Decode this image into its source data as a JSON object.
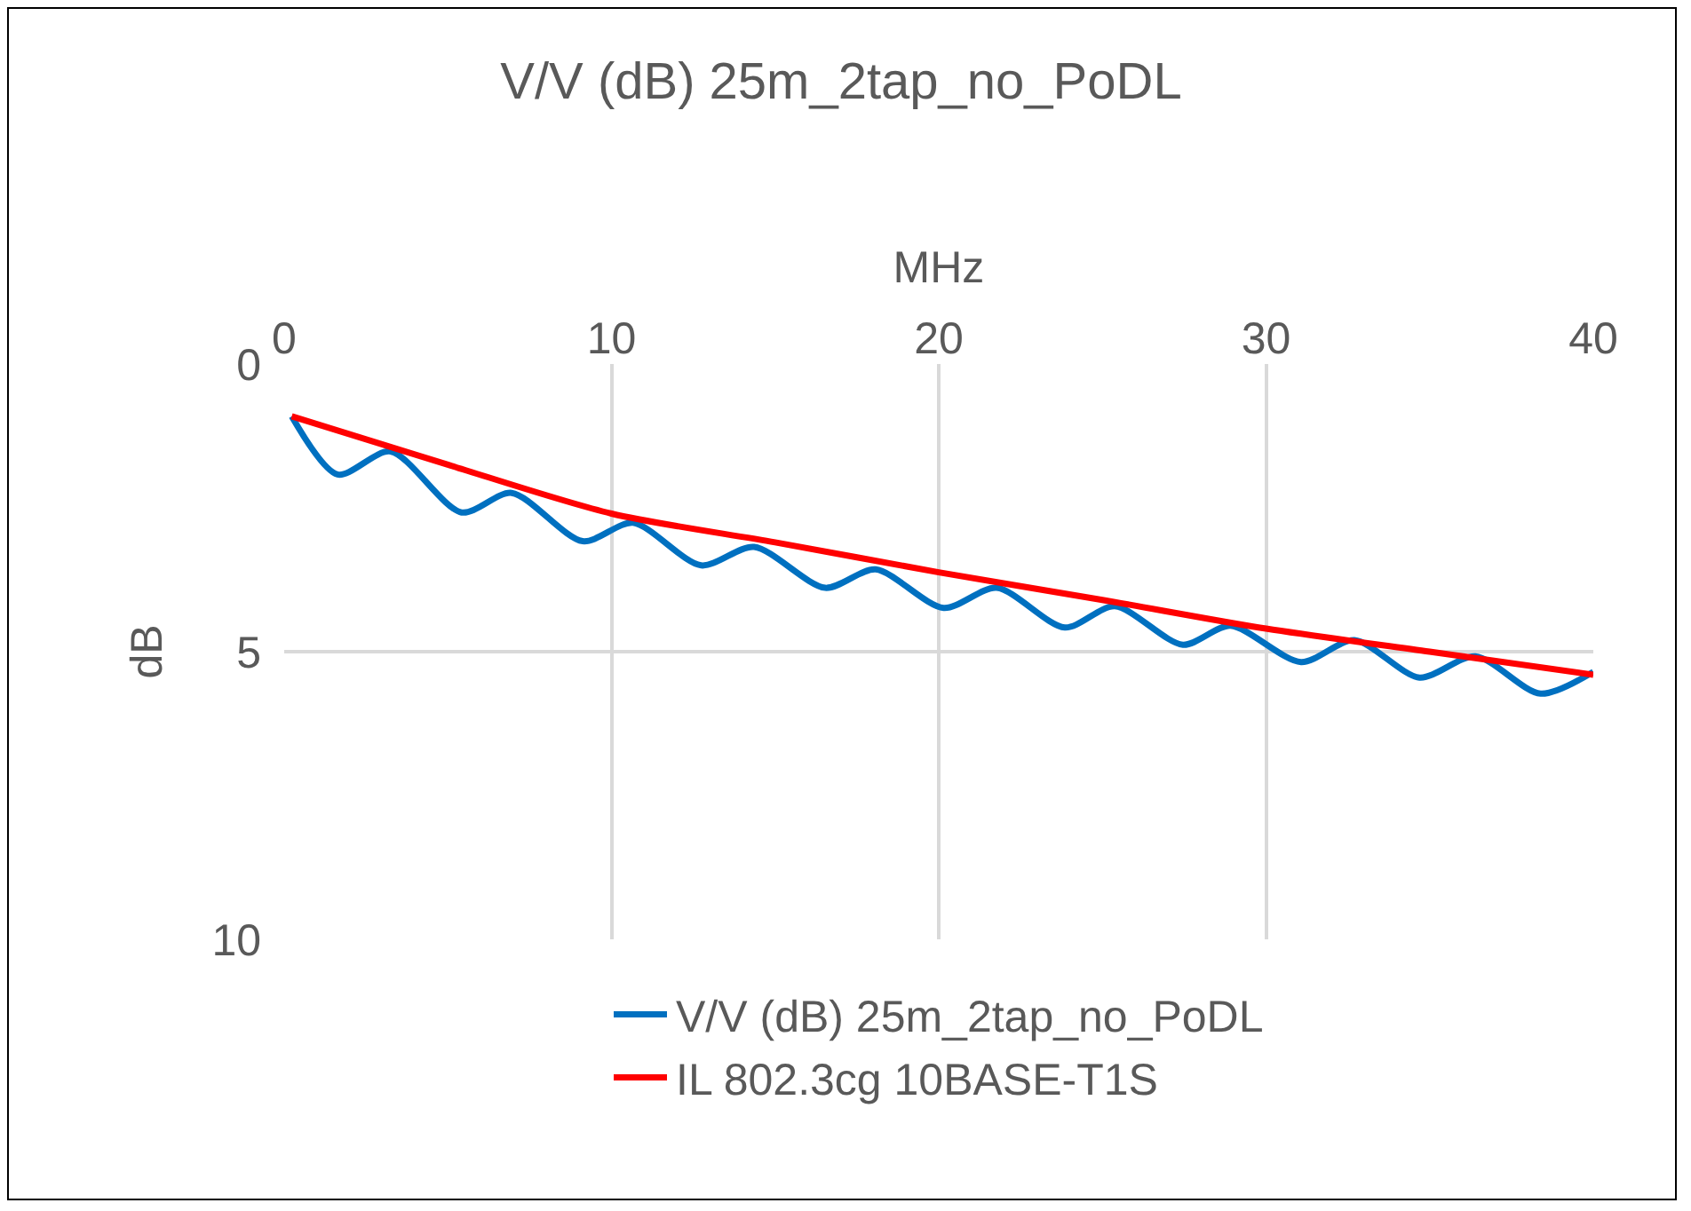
{
  "chart_data": {
    "type": "line",
    "title": "V/V (dB) 25m_2tap_no_PoDL",
    "xlabel": "MHz",
    "ylabel": "dB",
    "xlim": [
      0,
      40
    ],
    "xticks": [
      0,
      10,
      20,
      30,
      40
    ],
    "ylim": [
      10,
      0
    ],
    "yticks": [
      0,
      5,
      10
    ],
    "grid": true,
    "legend": "bottom",
    "series": [
      {
        "name": "V/V (dB) 25m_2tap_no_PoDL",
        "color": "#0070c0",
        "x": [
          0.23,
          1.63,
          3.25,
          5.42,
          6.95,
          9.12,
          10.66,
          12.74,
          14.36,
          16.53,
          18.07,
          20.15,
          21.77,
          23.85,
          25.38,
          27.46,
          28.91,
          31.07,
          32.7,
          34.69,
          36.4,
          38.39,
          40
        ],
        "values": [
          0.91,
          1.92,
          1.52,
          2.58,
          2.24,
          3.08,
          2.76,
          3.5,
          3.18,
          3.89,
          3.57,
          4.24,
          3.89,
          4.58,
          4.21,
          4.88,
          4.55,
          5.18,
          4.8,
          5.45,
          5.08,
          5.73,
          5.35
        ]
      },
      {
        "name": "IL 802.3cg 10BASE-T1S",
        "color": "#ff0000",
        "x": [
          0.23,
          5,
          10,
          15,
          20,
          25,
          30,
          35,
          40
        ],
        "values": [
          0.91,
          1.75,
          2.6,
          3.1,
          3.62,
          4.1,
          4.6,
          5.0,
          5.4
        ]
      }
    ]
  }
}
